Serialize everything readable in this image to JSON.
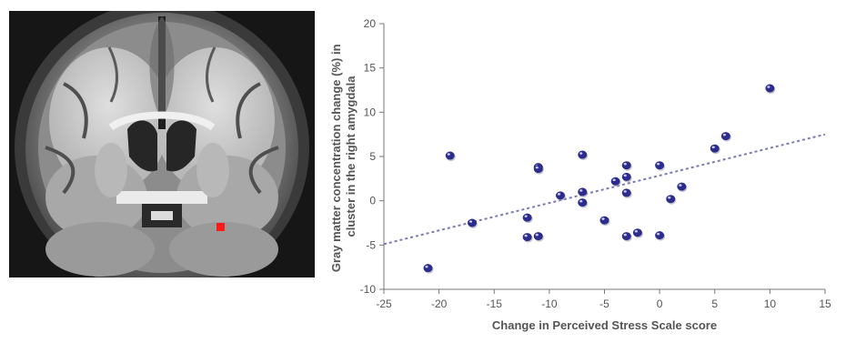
{
  "brain_image": {
    "description_icon": "brain-coronal-slice-icon",
    "roi_color": "#ff1a1a"
  },
  "chart_data": {
    "type": "scatter",
    "title": "",
    "xlabel": "Change in Perceived Stress Scale score",
    "ylabel_lines": [
      "Gray matter concentration change (%) in",
      "cluster in the right amygdala"
    ],
    "xlim": [
      -25,
      15
    ],
    "ylim": [
      -10,
      20
    ],
    "xticks": [
      -25,
      -20,
      -15,
      -10,
      -5,
      0,
      5,
      10,
      15
    ],
    "yticks": [
      -10,
      -5,
      0,
      5,
      10,
      15,
      20
    ],
    "xtick_labels": [
      "-25",
      "-20",
      "-15",
      "-10",
      "-5",
      "0",
      "5",
      "10",
      "15"
    ],
    "ytick_labels": [
      "-10",
      "-5",
      "0",
      "5",
      "10",
      "15",
      "20"
    ],
    "grid": false,
    "point_color": "#2c2c8c",
    "trend_color": "#7a7ab8",
    "points": [
      {
        "x": -21,
        "y": -7.6
      },
      {
        "x": -19,
        "y": 5.1
      },
      {
        "x": -17,
        "y": -2.5
      },
      {
        "x": -12,
        "y": -1.9
      },
      {
        "x": -12,
        "y": -4.1
      },
      {
        "x": -11,
        "y": -4.0
      },
      {
        "x": -11,
        "y": 3.8
      },
      {
        "x": -11,
        "y": 3.6
      },
      {
        "x": -9,
        "y": 0.6
      },
      {
        "x": -7,
        "y": 5.2
      },
      {
        "x": -7,
        "y": 1.0
      },
      {
        "x": -7,
        "y": -0.2
      },
      {
        "x": -5,
        "y": -2.2
      },
      {
        "x": -4,
        "y": 2.2
      },
      {
        "x": -3,
        "y": 4.0
      },
      {
        "x": -3,
        "y": 2.7
      },
      {
        "x": -3,
        "y": 0.9
      },
      {
        "x": -3,
        "y": -4.0
      },
      {
        "x": -2,
        "y": -3.6
      },
      {
        "x": 0,
        "y": 4.0
      },
      {
        "x": 0,
        "y": -3.9
      },
      {
        "x": 1,
        "y": 0.2
      },
      {
        "x": 2,
        "y": 1.6
      },
      {
        "x": 5,
        "y": 5.9
      },
      {
        "x": 6,
        "y": 7.3
      },
      {
        "x": 10,
        "y": 12.7
      }
    ],
    "trendline": {
      "x1": -25,
      "y1": -4.9,
      "x2": 15,
      "y2": 7.5
    }
  }
}
